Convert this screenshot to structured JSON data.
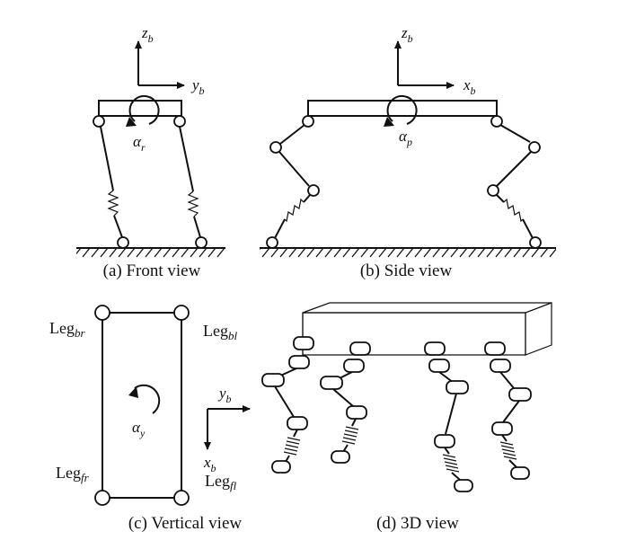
{
  "captions": {
    "front": "(a) Front view",
    "side": "(b) Side view",
    "vertical": "(c) Vertical view",
    "view3d": "(d) 3D view"
  },
  "axes": {
    "z": "z",
    "z_sub": "b",
    "y": "y",
    "y_sub": "b",
    "x": "x",
    "x_sub": "b"
  },
  "angles": {
    "roll": "α",
    "roll_sub": "r",
    "pitch": "α",
    "pitch_sub": "p",
    "yaw": "α",
    "yaw_sub": "y"
  },
  "legs": {
    "br": "Leg",
    "br_sub": "br",
    "bl": "Leg",
    "bl_sub": "bl",
    "fr": "Leg",
    "fr_sub": "fr",
    "fl": "Leg",
    "fl_sub": "fl"
  },
  "colors": {
    "line": "#111111",
    "background": "#ffffff"
  }
}
